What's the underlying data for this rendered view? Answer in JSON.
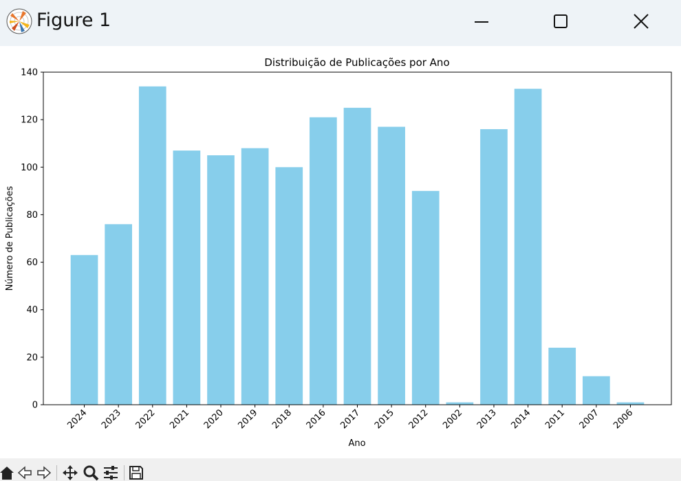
{
  "window": {
    "title": "Figure 1",
    "icon": "matplotlib-logo-icon"
  },
  "toolbar": {
    "icons": [
      "home-icon",
      "back-icon",
      "forward-icon",
      "pan-icon",
      "zoom-icon",
      "configure-subplots-icon",
      "save-icon"
    ]
  },
  "colors": {
    "bar": "#87ceeb",
    "titlebar": "#eef3f7",
    "toolbar": "#f0f0f0"
  },
  "chart_data": {
    "type": "bar",
    "title": "Distribuição de Publicações por Ano",
    "xlabel": "Ano",
    "ylabel": "Número de Publicações",
    "categories": [
      "2024",
      "2023",
      "2022",
      "2021",
      "2020",
      "2019",
      "2018",
      "2016",
      "2017",
      "2015",
      "2012",
      "2002",
      "2013",
      "2014",
      "2011",
      "2007",
      "2006"
    ],
    "values": [
      63,
      76,
      134,
      107,
      105,
      108,
      100,
      121,
      125,
      117,
      90,
      1,
      116,
      133,
      24,
      12,
      1
    ],
    "ylim": [
      0,
      140
    ],
    "yticks": [
      0,
      20,
      40,
      60,
      80,
      100,
      120,
      140
    ],
    "xtick_rotation": 45,
    "grid": false,
    "legend": "none"
  }
}
